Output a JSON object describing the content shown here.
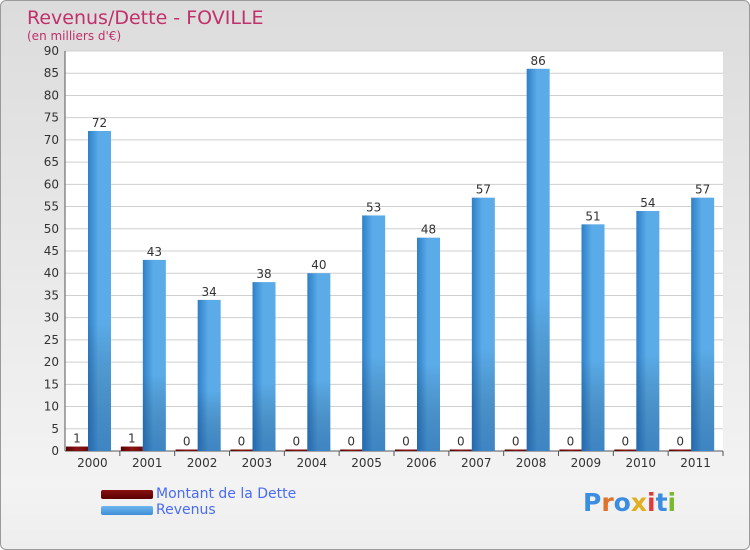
{
  "chart_data": {
    "type": "bar",
    "title": "Revenus/Dette - FOVILLE",
    "subtitle": "(en milliers d'€)",
    "categories": [
      "2000",
      "2001",
      "2002",
      "2003",
      "2004",
      "2005",
      "2006",
      "2007",
      "2008",
      "2009",
      "2010",
      "2011"
    ],
    "series": [
      {
        "name": "Montant de la Dette",
        "values": [
          1,
          1,
          0,
          0,
          0,
          0,
          0,
          0,
          0,
          0,
          0,
          0
        ],
        "color": "#7a0a0a"
      },
      {
        "name": "Revenus",
        "values": [
          72,
          43,
          34,
          38,
          40,
          53,
          48,
          57,
          86,
          51,
          54,
          57
        ],
        "color": "#4f9fe0"
      }
    ],
    "yticks": [
      0,
      5,
      10,
      15,
      20,
      25,
      30,
      35,
      40,
      45,
      50,
      55,
      60,
      65,
      70,
      75,
      80,
      85,
      90
    ],
    "ylim": [
      0,
      90
    ],
    "legend_position": "bottom-left"
  },
  "logo": {
    "text": "Proxiti",
    "colors": [
      "#3a8de0",
      "#e0732b",
      "#3a8de0",
      "#e0b020",
      "#e03a3a",
      "#3a8de0",
      "#7ab82e"
    ]
  }
}
